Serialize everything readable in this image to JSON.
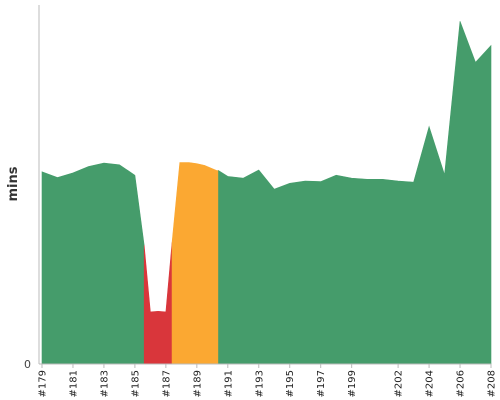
{
  "chart_data": {
    "type": "area",
    "ylabel": "mins",
    "ylim": [
      0,
      62
    ],
    "y_ticks": [
      {
        "value": 0,
        "label": "0"
      }
    ],
    "x_labels": [
      "#179",
      "#181",
      "#183",
      "#185",
      "#187",
      "#189",
      "#191",
      "#193",
      "#195",
      "#197",
      "#199",
      "#202",
      "#204",
      "#206",
      "#208"
    ],
    "grid": false,
    "series": [
      {
        "color": "#459c6b",
        "status": "success",
        "x": [
          179,
          180,
          181,
          182,
          183,
          184,
          185,
          185.6
        ],
        "values": [
          33.2,
          32.2,
          33.0,
          34.1,
          34.7,
          34.4,
          32.6,
          20.5
        ]
      },
      {
        "color": "#d9363b",
        "status": "failed",
        "x": [
          185.6,
          186,
          186.5,
          187,
          187.4
        ],
        "values": [
          20.5,
          9.0,
          9.1,
          9.0,
          21.0
        ]
      },
      {
        "color": "#fba832",
        "status": "unstable",
        "x": [
          187.4,
          187.9,
          188.5,
          189,
          189.5,
          190.3,
          190.4
        ],
        "values": [
          21.0,
          34.8,
          34.8,
          34.6,
          34.3,
          33.4,
          33.4
        ]
      },
      {
        "color": "#459c6b",
        "status": "success",
        "x": [
          190.4,
          191,
          192,
          193,
          194,
          195,
          196,
          197,
          198,
          199,
          200,
          201,
          202,
          203,
          204,
          205,
          206,
          207,
          208
        ],
        "values": [
          33.4,
          32.4,
          32.1,
          33.5,
          30.2,
          31.2,
          31.6,
          31.5,
          32.6,
          32.1,
          31.9,
          31.9,
          31.6,
          31.4,
          41.0,
          32.7,
          59.2,
          52.1,
          55.0
        ]
      }
    ]
  }
}
